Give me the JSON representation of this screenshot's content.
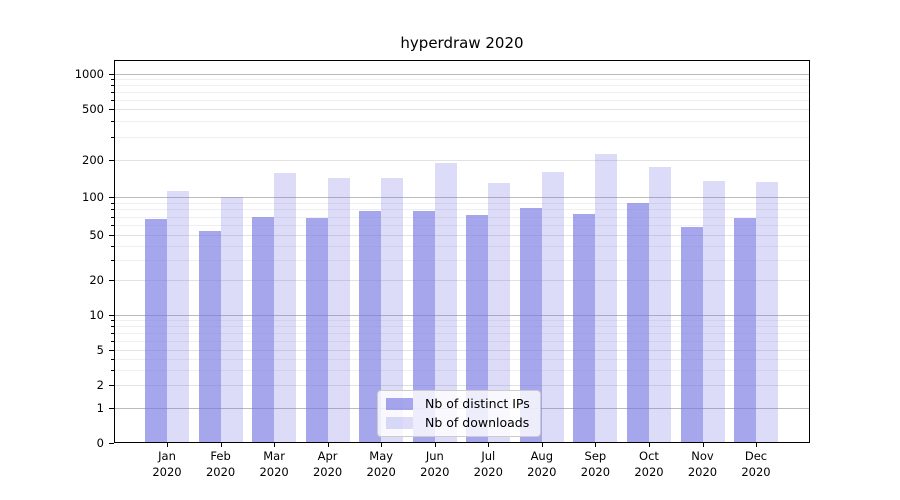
{
  "chart_data": {
    "type": "bar",
    "title": "hyperdraw 2020",
    "categories": [
      "Jan\n2020",
      "Feb\n2020",
      "Mar\n2020",
      "Apr\n2020",
      "May\n2020",
      "Jun\n2020",
      "Jul\n2020",
      "Aug\n2020",
      "Sep\n2020",
      "Oct\n2020",
      "Nov\n2020",
      "Dec\n2020"
    ],
    "series": [
      {
        "name": "Nb of distinct IPs",
        "color": "rgba(118,118,228,0.65)",
        "values": [
          67,
          54,
          69,
          68,
          78,
          78,
          72,
          82,
          73,
          90,
          58,
          68
        ]
      },
      {
        "name": "Nb of downloads",
        "color": "rgba(118,118,228,0.26)",
        "values": [
          113,
          101,
          157,
          143,
          143,
          189,
          130,
          160,
          222,
          176,
          136,
          132
        ]
      }
    ],
    "yticks": [
      1000,
      500,
      200,
      100,
      50,
      20,
      10,
      5,
      2,
      1,
      0
    ],
    "yscale": "symlog",
    "ylim": [
      0,
      1300
    ],
    "xlabel": "",
    "ylabel": "",
    "grid": true,
    "legend": {
      "position": "lower center",
      "items": [
        "Nb of distinct IPs",
        "Nb of downloads"
      ]
    }
  }
}
